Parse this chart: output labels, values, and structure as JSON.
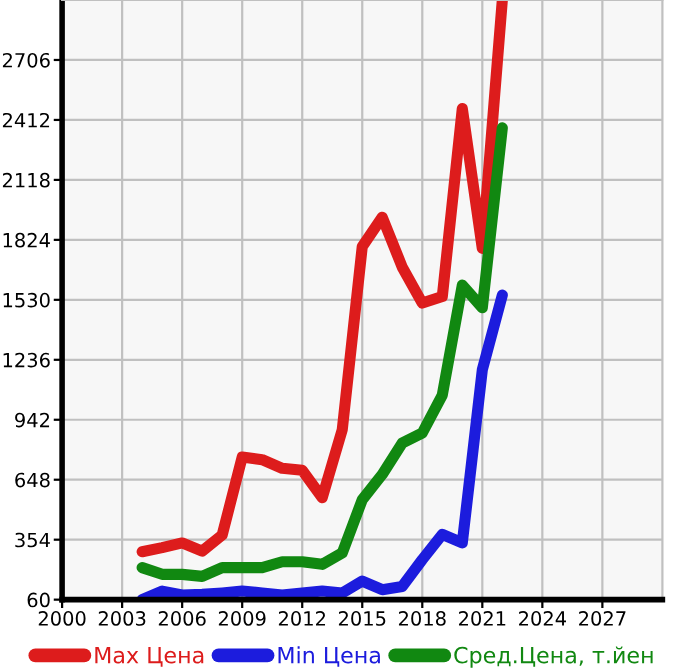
{
  "chart_data": {
    "type": "line",
    "x": [
      2004,
      2005,
      2006,
      2007,
      2008,
      2009,
      2010,
      2011,
      2012,
      2013,
      2014,
      2015,
      2016,
      2017,
      2018,
      2019,
      2020,
      2021,
      2022
    ],
    "series": [
      {
        "name": "Max Цена",
        "color": "#dd1c1c",
        "values": [
          295,
          315,
          338,
          298,
          377,
          759,
          746,
          704,
          694,
          560,
          893,
          1791,
          1935,
          1690,
          1514,
          1546,
          2468,
          1782,
          3000
        ]
      },
      {
        "name": "Min Цена",
        "color": "#1c1cdd",
        "values": [
          60,
          102,
          83,
          86,
          93,
          102,
          93,
          83,
          93,
          102,
          93,
          151,
          109,
          125,
          256,
          380,
          338,
          1187,
          1553
        ]
      },
      {
        "name": "Сред.Цена, т.йен",
        "color": "#118811",
        "values": [
          217,
          184,
          184,
          174,
          217,
          217,
          217,
          246,
          246,
          233,
          289,
          550,
          674,
          828,
          877,
          1063,
          1602,
          1491,
          2373
        ]
      }
    ],
    "xlim": [
      2000,
      2030
    ],
    "xticks": [
      2000,
      2003,
      2006,
      2009,
      2012,
      2015,
      2018,
      2021,
      2024,
      2027
    ],
    "ylim": [
      60,
      3000
    ],
    "yticks": [
      60,
      354,
      648,
      942,
      1236,
      1530,
      1824,
      2118,
      2412,
      2706
    ],
    "grid": true,
    "legend": "bottom",
    "marker": "none",
    "line_style": "solid"
  }
}
